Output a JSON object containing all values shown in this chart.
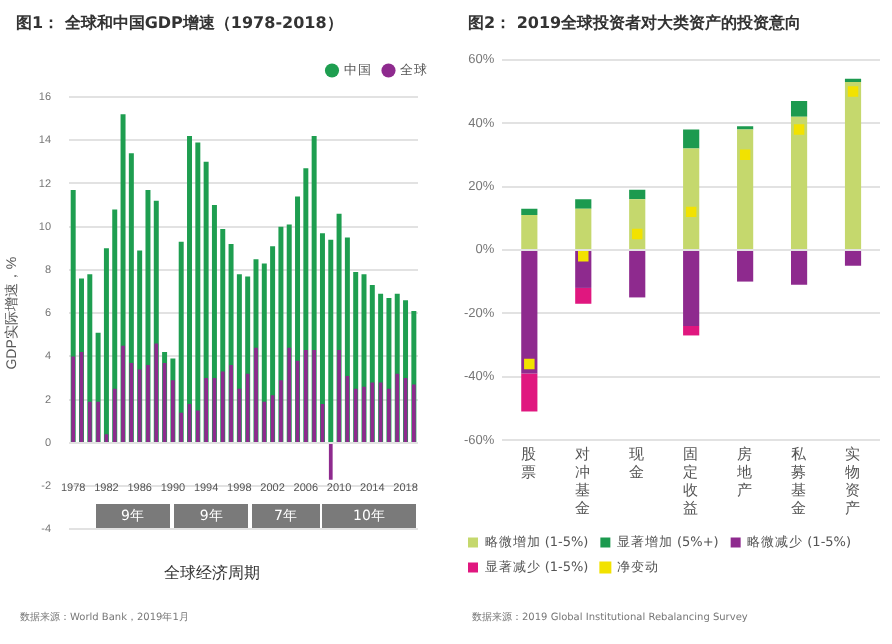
{
  "chart_data": [
    {
      "type": "bar",
      "title": "图1：  全球和中国GDP增速（1978-2018）",
      "ylabel": "GDP实际增速，%",
      "categories": [
        "1978",
        null,
        null,
        null,
        "1982",
        null,
        null,
        null,
        "1986",
        null,
        null,
        null,
        "1990",
        null,
        null,
        null,
        "1994",
        null,
        null,
        null,
        "1998",
        null,
        null,
        null,
        "2002",
        null,
        null,
        null,
        "2006",
        null,
        null,
        null,
        "2010",
        null,
        null,
        null,
        "2014",
        null,
        null,
        null,
        "2018",
        null
      ],
      "series": [
        {
          "name": "中国",
          "color": "#1e9e50",
          "values": [
            11.7,
            7.6,
            7.8,
            5.1,
            9.0,
            10.8,
            15.2,
            13.4,
            8.9,
            11.7,
            11.2,
            4.2,
            3.9,
            9.3,
            14.2,
            13.9,
            13.0,
            11.0,
            9.9,
            9.2,
            7.8,
            7.7,
            8.5,
            8.3,
            9.1,
            10.0,
            10.1,
            11.4,
            12.7,
            14.2,
            9.7,
            9.4,
            10.6,
            9.5,
            7.9,
            7.8,
            7.3,
            6.9,
            6.7,
            6.9,
            6.6,
            6.1
          ]
        },
        {
          "name": "全球",
          "color": "#8e2a8e",
          "values": [
            4.0,
            4.2,
            1.9,
            1.9,
            0.4,
            2.5,
            4.5,
            3.7,
            3.4,
            3.6,
            4.6,
            3.7,
            2.9,
            1.4,
            1.8,
            1.5,
            3.0,
            3.0,
            3.3,
            3.6,
            2.5,
            3.2,
            4.4,
            1.9,
            2.2,
            2.9,
            4.4,
            3.8,
            4.3,
            4.3,
            1.8,
            -1.7,
            4.3,
            3.1,
            2.5,
            2.6,
            2.8,
            2.8,
            2.5,
            3.2,
            3.0,
            2.7
          ]
        }
      ],
      "ylim": [
        -4,
        16
      ],
      "yticks": [
        -4,
        -2,
        0,
        2,
        4,
        6,
        8,
        10,
        12,
        14,
        16
      ],
      "grid": "y",
      "legend": "top right",
      "annotations": [
        "9年",
        "9年",
        "7年",
        "10年",
        "全球经济周期",
        "数据来源：World Bank，2019年1月"
      ]
    },
    {
      "type": "bar",
      "title": "图2：  2019全球投资者对大类资产的投资意向",
      "stacked": true,
      "categories": [
        "股票",
        "对冲基金",
        "现金",
        "固定收益",
        "房地产",
        "私募基金",
        "实物资产"
      ],
      "series": [
        {
          "name": "略微增加 (1-5%)",
          "color": "#c5d86d",
          "values": [
            11,
            13,
            16,
            32,
            38,
            42,
            53
          ]
        },
        {
          "name": "显著增加 (5%+)",
          "color": "#1c9a4f",
          "values": [
            2,
            3,
            3,
            6,
            1,
            5,
            1
          ]
        },
        {
          "name": "略微减少 (1-5%)",
          "color": "#8e2a8e",
          "values": [
            -39,
            -12,
            -15,
            -24,
            -10,
            -11,
            -5
          ]
        },
        {
          "name": "显著减少 (1-5%)",
          "color": "#e0177f",
          "values": [
            -12,
            -5,
            null,
            -3,
            null,
            null,
            null
          ]
        },
        {
          "name": "净变动",
          "type": "scatter",
          "marker": "square",
          "color": "#f2e200",
          "values": [
            -36,
            -2,
            5,
            12,
            30,
            38,
            50
          ]
        }
      ],
      "ylim": [
        -60,
        60
      ],
      "yticks": [
        {
          "value": -60,
          "label": "-60%"
        },
        {
          "value": -40,
          "label": "-40%"
        },
        {
          "value": -20,
          "label": "-20%"
        },
        {
          "value": 0,
          "label": "0%"
        },
        {
          "value": 20,
          "label": "20%"
        },
        {
          "value": 40,
          "label": "40%"
        },
        {
          "value": 60,
          "label": "60%"
        }
      ],
      "grid": "y",
      "legend": "bottom left",
      "annotations": [
        "数据来源：2019 Global Institutional Rebalancing Survey"
      ]
    }
  ]
}
